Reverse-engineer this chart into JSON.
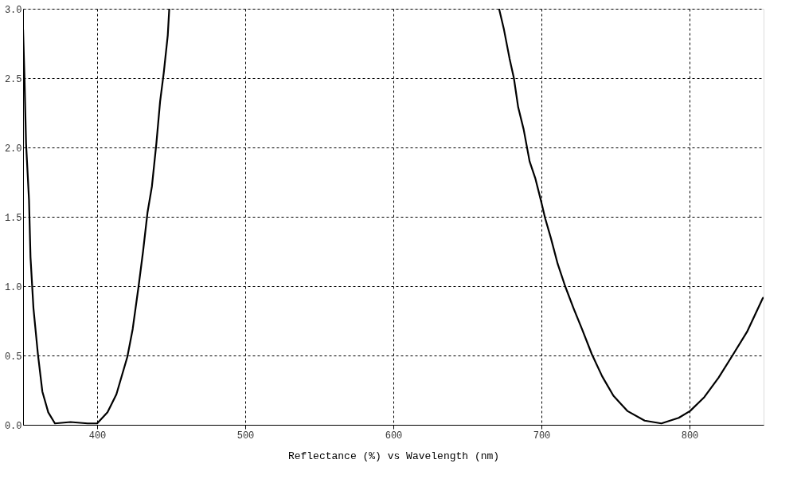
{
  "chart_data": {
    "type": "line",
    "xlabel": "Reflectance (%)  vs  Wavelength (nm)",
    "x": [
      350,
      351,
      352,
      354,
      355,
      357,
      360,
      363,
      367,
      371.5,
      382,
      393.6,
      400,
      407,
      413,
      420.4,
      424,
      428,
      431,
      434,
      437,
      440,
      442.5,
      445,
      447.7,
      448.7,
      560,
      671.4,
      674.7,
      678.5,
      681.4,
      684.3,
      688,
      692,
      695.8,
      699.6,
      702.5,
      706.3,
      711,
      716,
      721.7,
      727.4,
      734,
      741,
      748.6,
      758,
      769.7,
      781,
      792.7,
      800.4,
      810,
      819.6,
      829,
      838.8,
      849.3,
      850
    ],
    "series": [
      {
        "color": "#000000",
        "values": [
          2.85,
          2.48,
          2.03,
          1.62,
          1.21,
          0.84,
          0.51,
          0.24,
          0.09,
          0.01,
          0.02,
          0.01,
          0.01,
          0.09,
          0.22,
          0.49,
          0.69,
          1.0,
          1.25,
          1.53,
          1.72,
          2.03,
          2.33,
          2.54,
          2.81,
          3.0,
          null,
          3.0,
          2.85,
          2.64,
          2.5,
          2.29,
          2.13,
          1.9,
          1.78,
          1.62,
          1.49,
          1.35,
          1.16,
          1.0,
          0.84,
          0.69,
          0.51,
          0.35,
          0.21,
          0.1,
          0.03,
          0.01,
          0.05,
          0.1,
          0.2,
          0.34,
          0.5,
          0.67,
          0.91,
          0.92
        ]
      }
    ],
    "xlim": [
      350,
      850
    ],
    "xticks": [
      400,
      500,
      600,
      700,
      800
    ],
    "ylim": [
      0,
      3
    ],
    "yticks": [
      {
        "value": 0,
        "label": "0.0"
      },
      {
        "value": 0.5,
        "label": "0.5"
      },
      {
        "value": 1,
        "label": "1.0"
      },
      {
        "value": 1.5,
        "label": "1.5"
      },
      {
        "value": 2,
        "label": "2.0"
      },
      {
        "value": 2.5,
        "label": "2.5"
      },
      {
        "value": 3,
        "label": "3.0"
      }
    ],
    "grid": true,
    "line_style": "solid"
  }
}
